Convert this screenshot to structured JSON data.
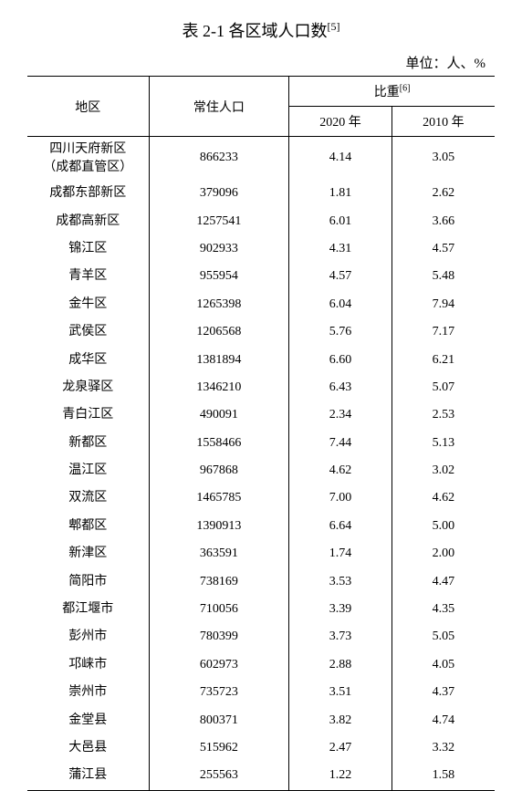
{
  "title_prefix": "表 2-1 各区域人口数",
  "title_sup": "[5]",
  "unit_label": "单位：人、%",
  "header": {
    "region": "地区",
    "population": "常住人口",
    "ratio": "比重",
    "ratio_sup": "[6]",
    "y2020": "2020 年",
    "y2010": "2010 年"
  },
  "rows": [
    {
      "region_line1": "四川天府新区",
      "region_line2": "（成都直管区）",
      "pop": "866233",
      "y2020": "4.14",
      "y2010": "3.05"
    },
    {
      "region_line1": "成都东部新区",
      "pop": "379096",
      "y2020": "1.81",
      "y2010": "2.62"
    },
    {
      "region_line1": "成都高新区",
      "pop": "1257541",
      "y2020": "6.01",
      "y2010": "3.66"
    },
    {
      "region_line1": "锦江区",
      "pop": "902933",
      "y2020": "4.31",
      "y2010": "4.57"
    },
    {
      "region_line1": "青羊区",
      "pop": "955954",
      "y2020": "4.57",
      "y2010": "5.48"
    },
    {
      "region_line1": "金牛区",
      "pop": "1265398",
      "y2020": "6.04",
      "y2010": "7.94"
    },
    {
      "region_line1": "武侯区",
      "pop": "1206568",
      "y2020": "5.76",
      "y2010": "7.17"
    },
    {
      "region_line1": "成华区",
      "pop": "1381894",
      "y2020": "6.60",
      "y2010": "6.21"
    },
    {
      "region_line1": "龙泉驿区",
      "pop": "1346210",
      "y2020": "6.43",
      "y2010": "5.07"
    },
    {
      "region_line1": "青白江区",
      "pop": "490091",
      "y2020": "2.34",
      "y2010": "2.53"
    },
    {
      "region_line1": "新都区",
      "pop": "1558466",
      "y2020": "7.44",
      "y2010": "5.13"
    },
    {
      "region_line1": "温江区",
      "pop": "967868",
      "y2020": "4.62",
      "y2010": "3.02"
    },
    {
      "region_line1": "双流区",
      "pop": "1465785",
      "y2020": "7.00",
      "y2010": "4.62"
    },
    {
      "region_line1": "郫都区",
      "pop": "1390913",
      "y2020": "6.64",
      "y2010": "5.00"
    },
    {
      "region_line1": "新津区",
      "pop": "363591",
      "y2020": "1.74",
      "y2010": "2.00"
    },
    {
      "region_line1": "简阳市",
      "pop": "738169",
      "y2020": "3.53",
      "y2010": "4.47"
    },
    {
      "region_line1": "都江堰市",
      "pop": "710056",
      "y2020": "3.39",
      "y2010": "4.35"
    },
    {
      "region_line1": "彭州市",
      "pop": "780399",
      "y2020": "3.73",
      "y2010": "5.05"
    },
    {
      "region_line1": "邛崃市",
      "pop": "602973",
      "y2020": "2.88",
      "y2010": "4.05"
    },
    {
      "region_line1": "崇州市",
      "pop": "735723",
      "y2020": "3.51",
      "y2010": "4.37"
    },
    {
      "region_line1": "金堂县",
      "pop": "800371",
      "y2020": "3.82",
      "y2010": "4.74"
    },
    {
      "region_line1": "大邑县",
      "pop": "515962",
      "y2020": "2.47",
      "y2010": "3.32"
    },
    {
      "region_line1": "蒲江县",
      "pop": "255563",
      "y2020": "1.22",
      "y2010": "1.58"
    }
  ]
}
